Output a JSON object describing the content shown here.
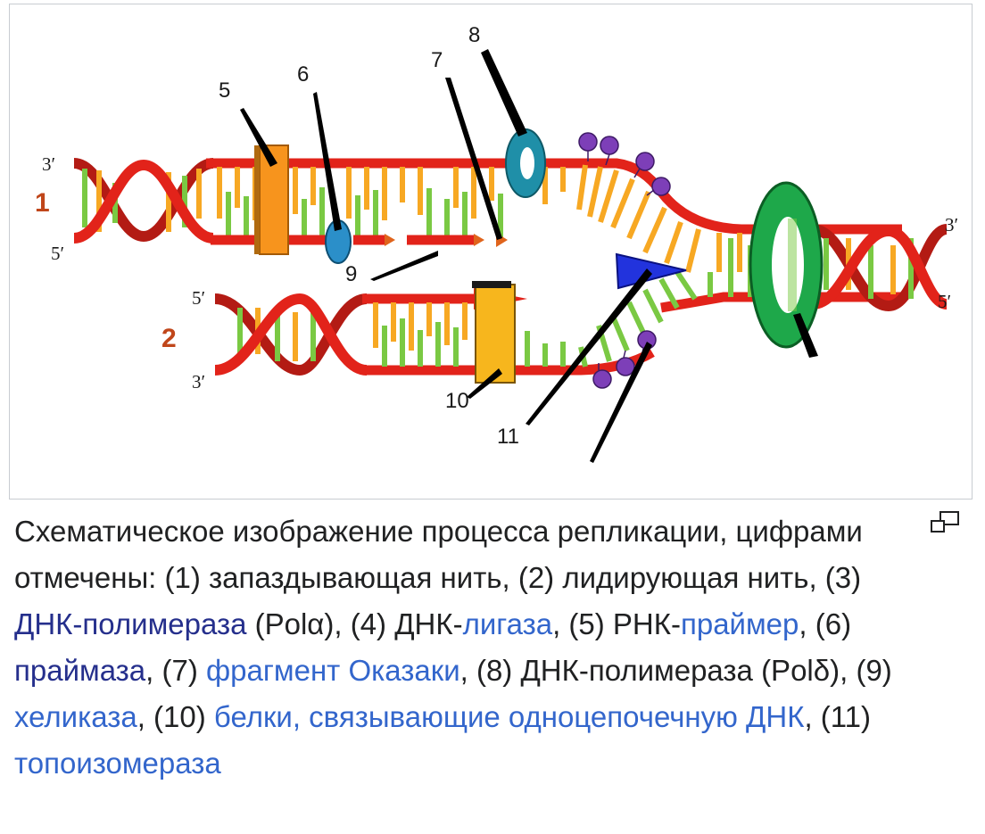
{
  "figure": {
    "ends": {
      "top_left_3": "3′",
      "top_left_5": "5′",
      "top_right_3": "3′",
      "top_right_5": "5′",
      "bottom_left_5": "5′",
      "bottom_left_3": "3′"
    },
    "strand_labels": [
      "1",
      "2"
    ],
    "callouts": [
      "3",
      "4",
      "5",
      "6",
      "7",
      "8",
      "9",
      "10",
      "11"
    ],
    "colors": {
      "backbone": "#e2231a",
      "base_green": "#7ac943",
      "base_orange": "#f7a823",
      "polymerase": "#f7941d",
      "primase": "#1f8fa8",
      "ligase": "#2b8fc9",
      "helicase": "#2233dd",
      "topoisomerase": "#1ea84a",
      "ssb": "#7d3fb8"
    },
    "icon": "magnify-clip-icon"
  },
  "caption": {
    "t1": "Схематическое изображение процесса репликации, цифрами отмечены: (1) запаздывающая нить, (2) лидирующая нить, (3) ",
    "l1": "ДНК-полимераза",
    "t2": " (Polα), (4) ДНК-",
    "l2": "лигаза",
    "t3": ", (5) РНК-",
    "l3": "праймер",
    "t4": ", (6) ",
    "l4": "праймаза",
    "t5": ", (7) ",
    "l5": "фрагмент Оказаки",
    "t6": ", (8) ДНК-полимераза (Polδ), (9) ",
    "l6": "хеликаза",
    "t7": ", (10) ",
    "l7": "белки, связывающие одноцепочечную ДНК",
    "t8": ", (11) ",
    "l8": "топоизомераза"
  }
}
